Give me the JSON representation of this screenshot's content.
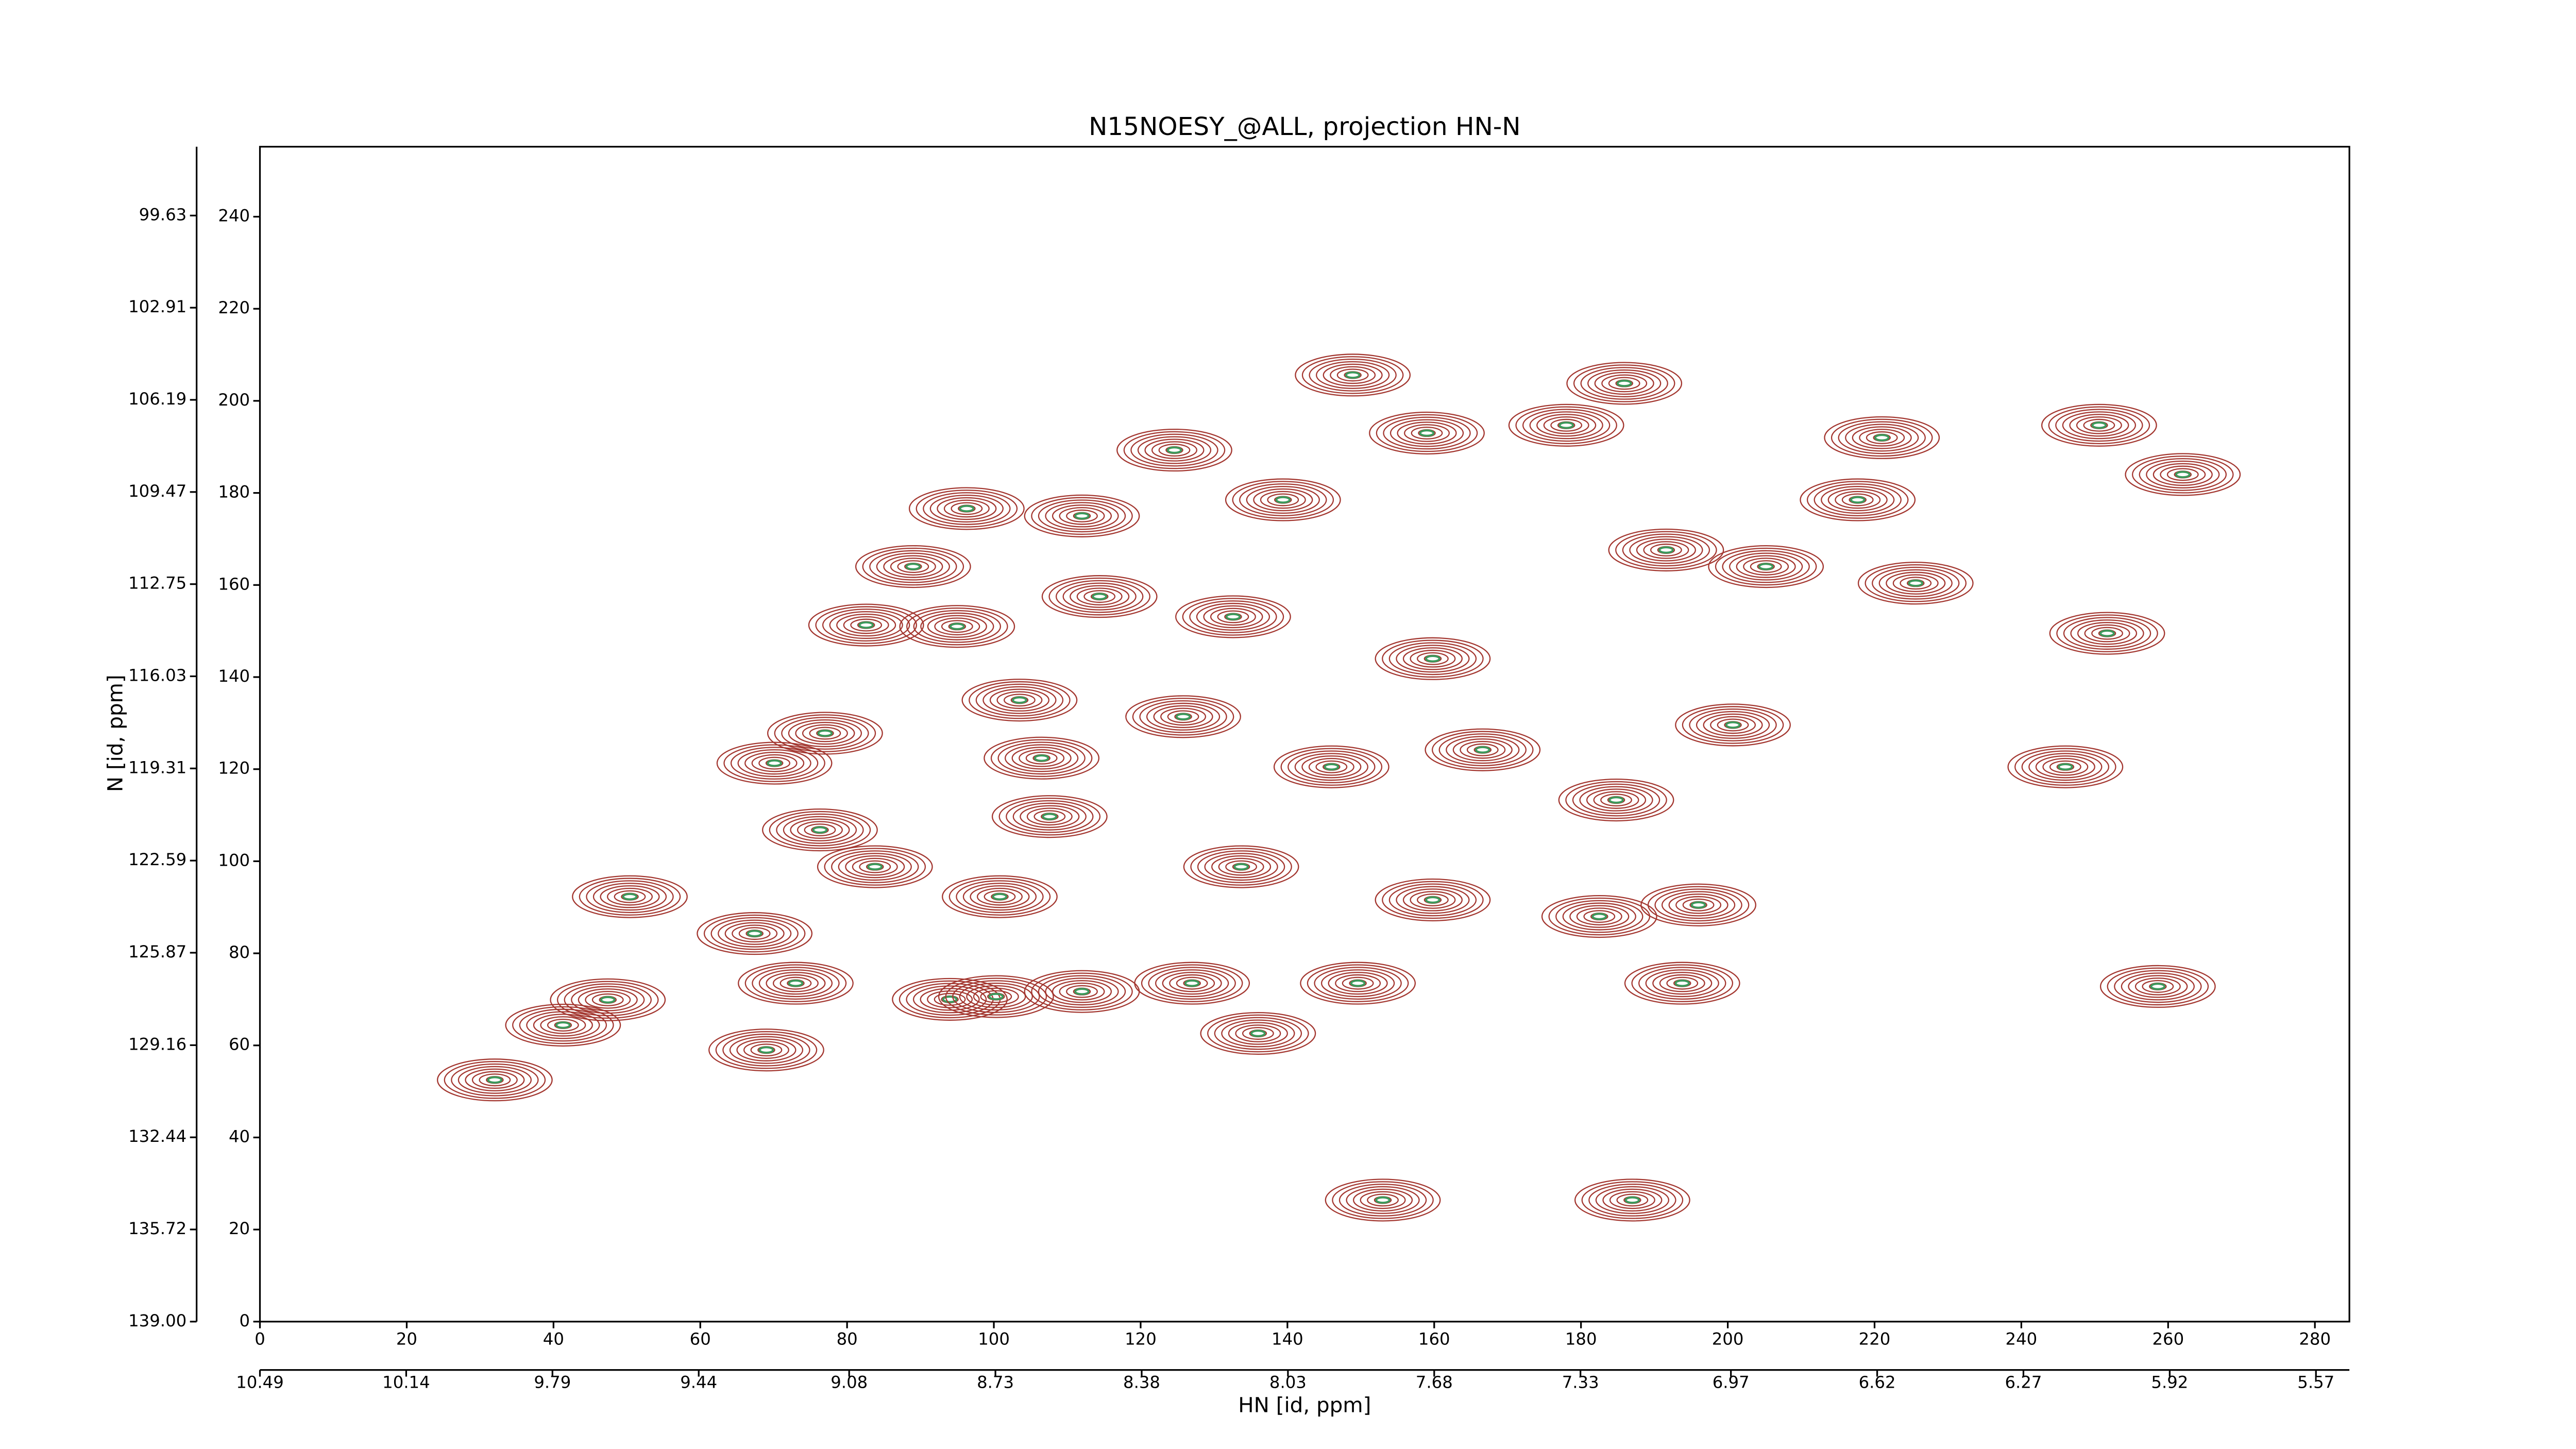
{
  "chart_data": {
    "type": "contour",
    "title": "N15NOESY_@ALL, projection HN-N",
    "xlabel": "HN [id, ppm]",
    "ylabel": "N [id, ppm]",
    "xlim": [
      0,
      284.7
    ],
    "xticks": [
      0,
      20,
      40,
      60,
      80,
      100,
      120,
      140,
      160,
      180,
      200,
      220,
      240,
      260,
      280
    ],
    "ylim": [
      0,
      255.2
    ],
    "yticks": [
      0,
      20,
      40,
      60,
      80,
      100,
      120,
      140,
      160,
      180,
      200,
      220,
      240
    ],
    "x2lim": [
      10.49,
      5.49
    ],
    "x2ticks": [
      10.49,
      10.14,
      9.79,
      9.44,
      9.08,
      8.73,
      8.38,
      8.03,
      7.68,
      7.33,
      6.97,
      6.62,
      6.27,
      5.92,
      5.57
    ],
    "y2lim": [
      139.0,
      97.18
    ],
    "y2ticks": [
      {
        "value": 139.0,
        "label": "139.00"
      },
      135.72,
      132.44,
      129.16,
      125.87,
      122.59,
      119.31,
      116.03,
      112.75,
      109.47,
      106.19,
      102.91,
      99.63
    ],
    "color": "#a3362f",
    "inner_color": "#3c9a5c",
    "peaks": {
      "x": [
        32.0,
        41.3,
        47.4,
        50.4,
        67.4,
        69.0,
        73.0,
        70.1,
        77.0,
        76.3,
        82.6,
        83.8,
        89.0,
        95.0,
        96.3,
        94.0,
        100.3,
        100.8,
        103.5,
        106.5,
        107.6,
        112.0,
        112.0,
        114.4,
        124.6,
        125.8,
        127.0,
        132.6,
        133.7,
        136.0,
        139.4,
        146.0,
        148.9,
        149.6,
        159.0,
        159.8,
        159.8,
        166.6,
        178.0,
        185.9,
        182.5,
        193.8,
        196.0,
        200.7,
        184.8,
        191.6,
        205.2,
        217.7,
        225.6,
        250.6,
        251.7,
        246.0,
        258.6,
        221.0,
        187.0,
        153.0,
        262.0
      ],
      "y": [
        52.5,
        64.4,
        69.9,
        92.3,
        84.3,
        59.0,
        73.5,
        121.3,
        127.8,
        106.8,
        151.3,
        98.8,
        164.0,
        151.0,
        176.6,
        70.0,
        70.6,
        92.3,
        135.0,
        122.4,
        109.7,
        175.0,
        71.7,
        157.5,
        189.3,
        131.4,
        73.5,
        153.1,
        98.8,
        62.6,
        178.5,
        120.5,
        205.6,
        73.5,
        193.0,
        144.0,
        91.6,
        124.2,
        194.7,
        203.8,
        88.0,
        73.5,
        90.5,
        129.6,
        113.3,
        167.6,
        164.0,
        178.5,
        160.4,
        194.7,
        149.5,
        120.5,
        72.8,
        192.0,
        26.4,
        26.4,
        184.0
      ]
    }
  }
}
